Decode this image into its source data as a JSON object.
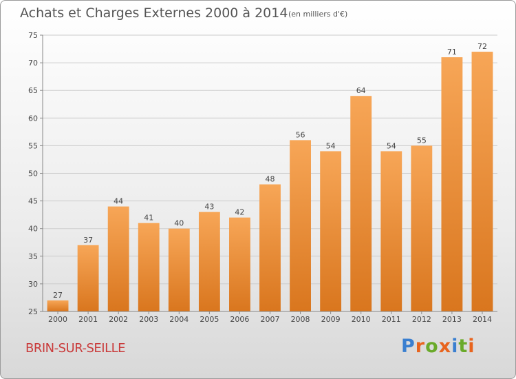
{
  "header": {
    "title": "Achats et Charges Externes 2000 à 2014",
    "subtitle": "(en milliers d'€)"
  },
  "footer": {
    "commune": "BRIN-SUR-SEILLE",
    "logo_text": "Proxiti",
    "logo_letters": [
      {
        "ch": "P",
        "color": "#3a7fd0"
      },
      {
        "ch": "r",
        "color": "#e8641e"
      },
      {
        "ch": "o",
        "color": "#6aaa2a"
      },
      {
        "ch": "x",
        "color": "#e8641e"
      },
      {
        "ch": "i",
        "color": "#3a7fd0"
      },
      {
        "ch": "t",
        "color": "#6aaa2a"
      },
      {
        "ch": "i",
        "color": "#e8641e"
      }
    ]
  },
  "chart_data": {
    "type": "bar",
    "title": "Achats et Charges Externes 2000 à 2014",
    "subtitle": "(en milliers d'€)",
    "categories": [
      "2000",
      "2001",
      "2002",
      "2003",
      "2004",
      "2005",
      "2006",
      "2007",
      "2008",
      "2009",
      "2010",
      "2011",
      "2012",
      "2013",
      "2014"
    ],
    "values": [
      27,
      37,
      44,
      41,
      40,
      43,
      42,
      48,
      56,
      54,
      64,
      54,
      55,
      71,
      72
    ],
    "ylim": [
      25,
      75
    ],
    "yticks": [
      25,
      30,
      35,
      40,
      45,
      50,
      55,
      60,
      65,
      70,
      75
    ],
    "grid": true,
    "xlabel": "",
    "ylabel": "",
    "colors": {
      "bar_top": "#f7a657",
      "bar_bottom": "#d9761e",
      "grid": "#cccccc",
      "axis": "#888888"
    }
  }
}
